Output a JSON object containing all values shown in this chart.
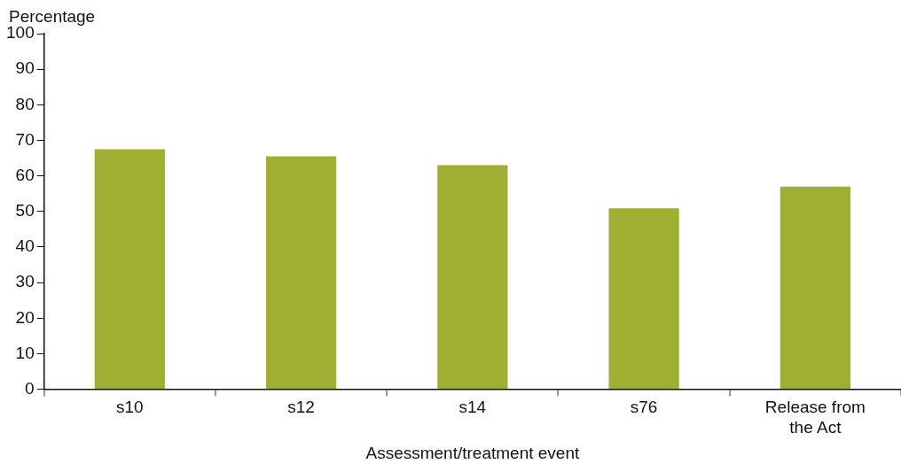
{
  "chart_data": {
    "type": "bar",
    "ylabel": "Percentage",
    "xlabel": "Assessment/treatment event",
    "categories": [
      "s10",
      "s12",
      "s14",
      "s76",
      "Release from the Act"
    ],
    "values": [
      67.5,
      65.5,
      63,
      50.9,
      57
    ],
    "color": "#a0ae32",
    "ylim": [
      0,
      100
    ],
    "yticks": [
      0,
      10,
      20,
      30,
      40,
      50,
      60,
      70,
      80,
      90,
      100
    ],
    "grid": false,
    "legend": false
  }
}
